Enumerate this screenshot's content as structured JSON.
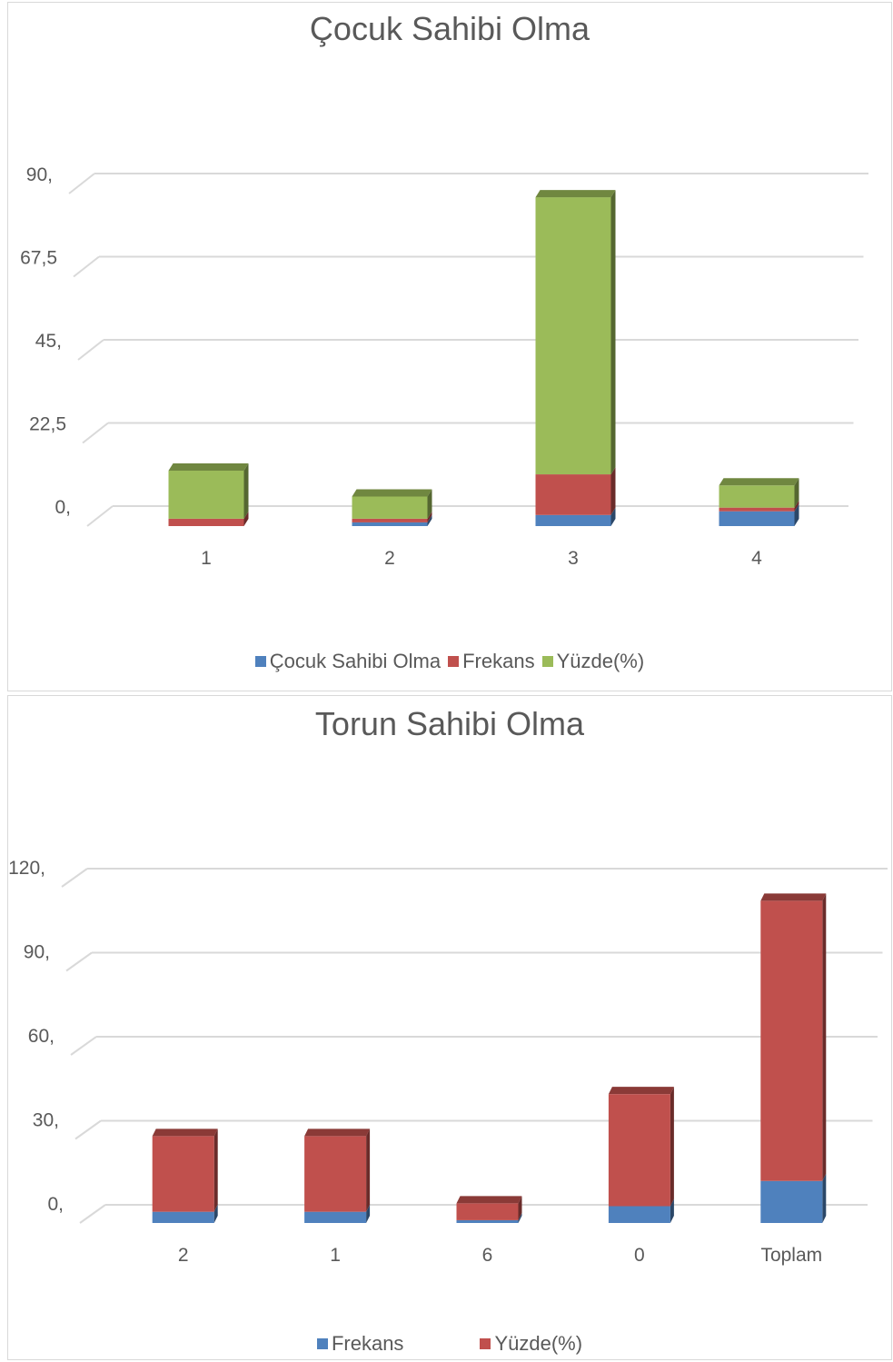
{
  "chart_data": [
    {
      "type": "bar",
      "stacked": true,
      "title": "Çocuk Sahibi Olma",
      "categories": [
        "1",
        "2",
        "3",
        "4"
      ],
      "series": [
        {
          "name": "Çocuk Sahibi Olma",
          "values": [
            0,
            1,
            3,
            4
          ]
        },
        {
          "name": "Frekans",
          "values": [
            2,
            1,
            11,
            1
          ]
        },
        {
          "name": "Yüzde(%)",
          "values": [
            13,
            6,
            75,
            6
          ]
        }
      ],
      "y_ticks": [
        "0,",
        "22,5",
        "45,",
        "67,5",
        "90,"
      ],
      "ylim": [
        0,
        90
      ],
      "grid": true,
      "legend": "bottom",
      "colors": [
        "#4f81bd",
        "#c0504d",
        "#9bbb59"
      ]
    },
    {
      "type": "bar",
      "stacked": true,
      "title": "Torun Sahibi Olma",
      "categories": [
        "2",
        "1",
        "6",
        "0",
        "Toplam"
      ],
      "series": [
        {
          "name": "Frekans",
          "values": [
            4,
            4,
            1,
            6,
            15
          ]
        },
        {
          "name": "Yüzde(%)",
          "values": [
            27,
            27,
            6,
            40,
            100
          ]
        }
      ],
      "y_ticks": [
        "0,",
        "30,",
        "60,",
        "90,",
        "120,"
      ],
      "ylim": [
        0,
        120
      ],
      "grid": true,
      "legend": "bottom",
      "colors": [
        "#4f81bd",
        "#c0504d"
      ]
    }
  ]
}
